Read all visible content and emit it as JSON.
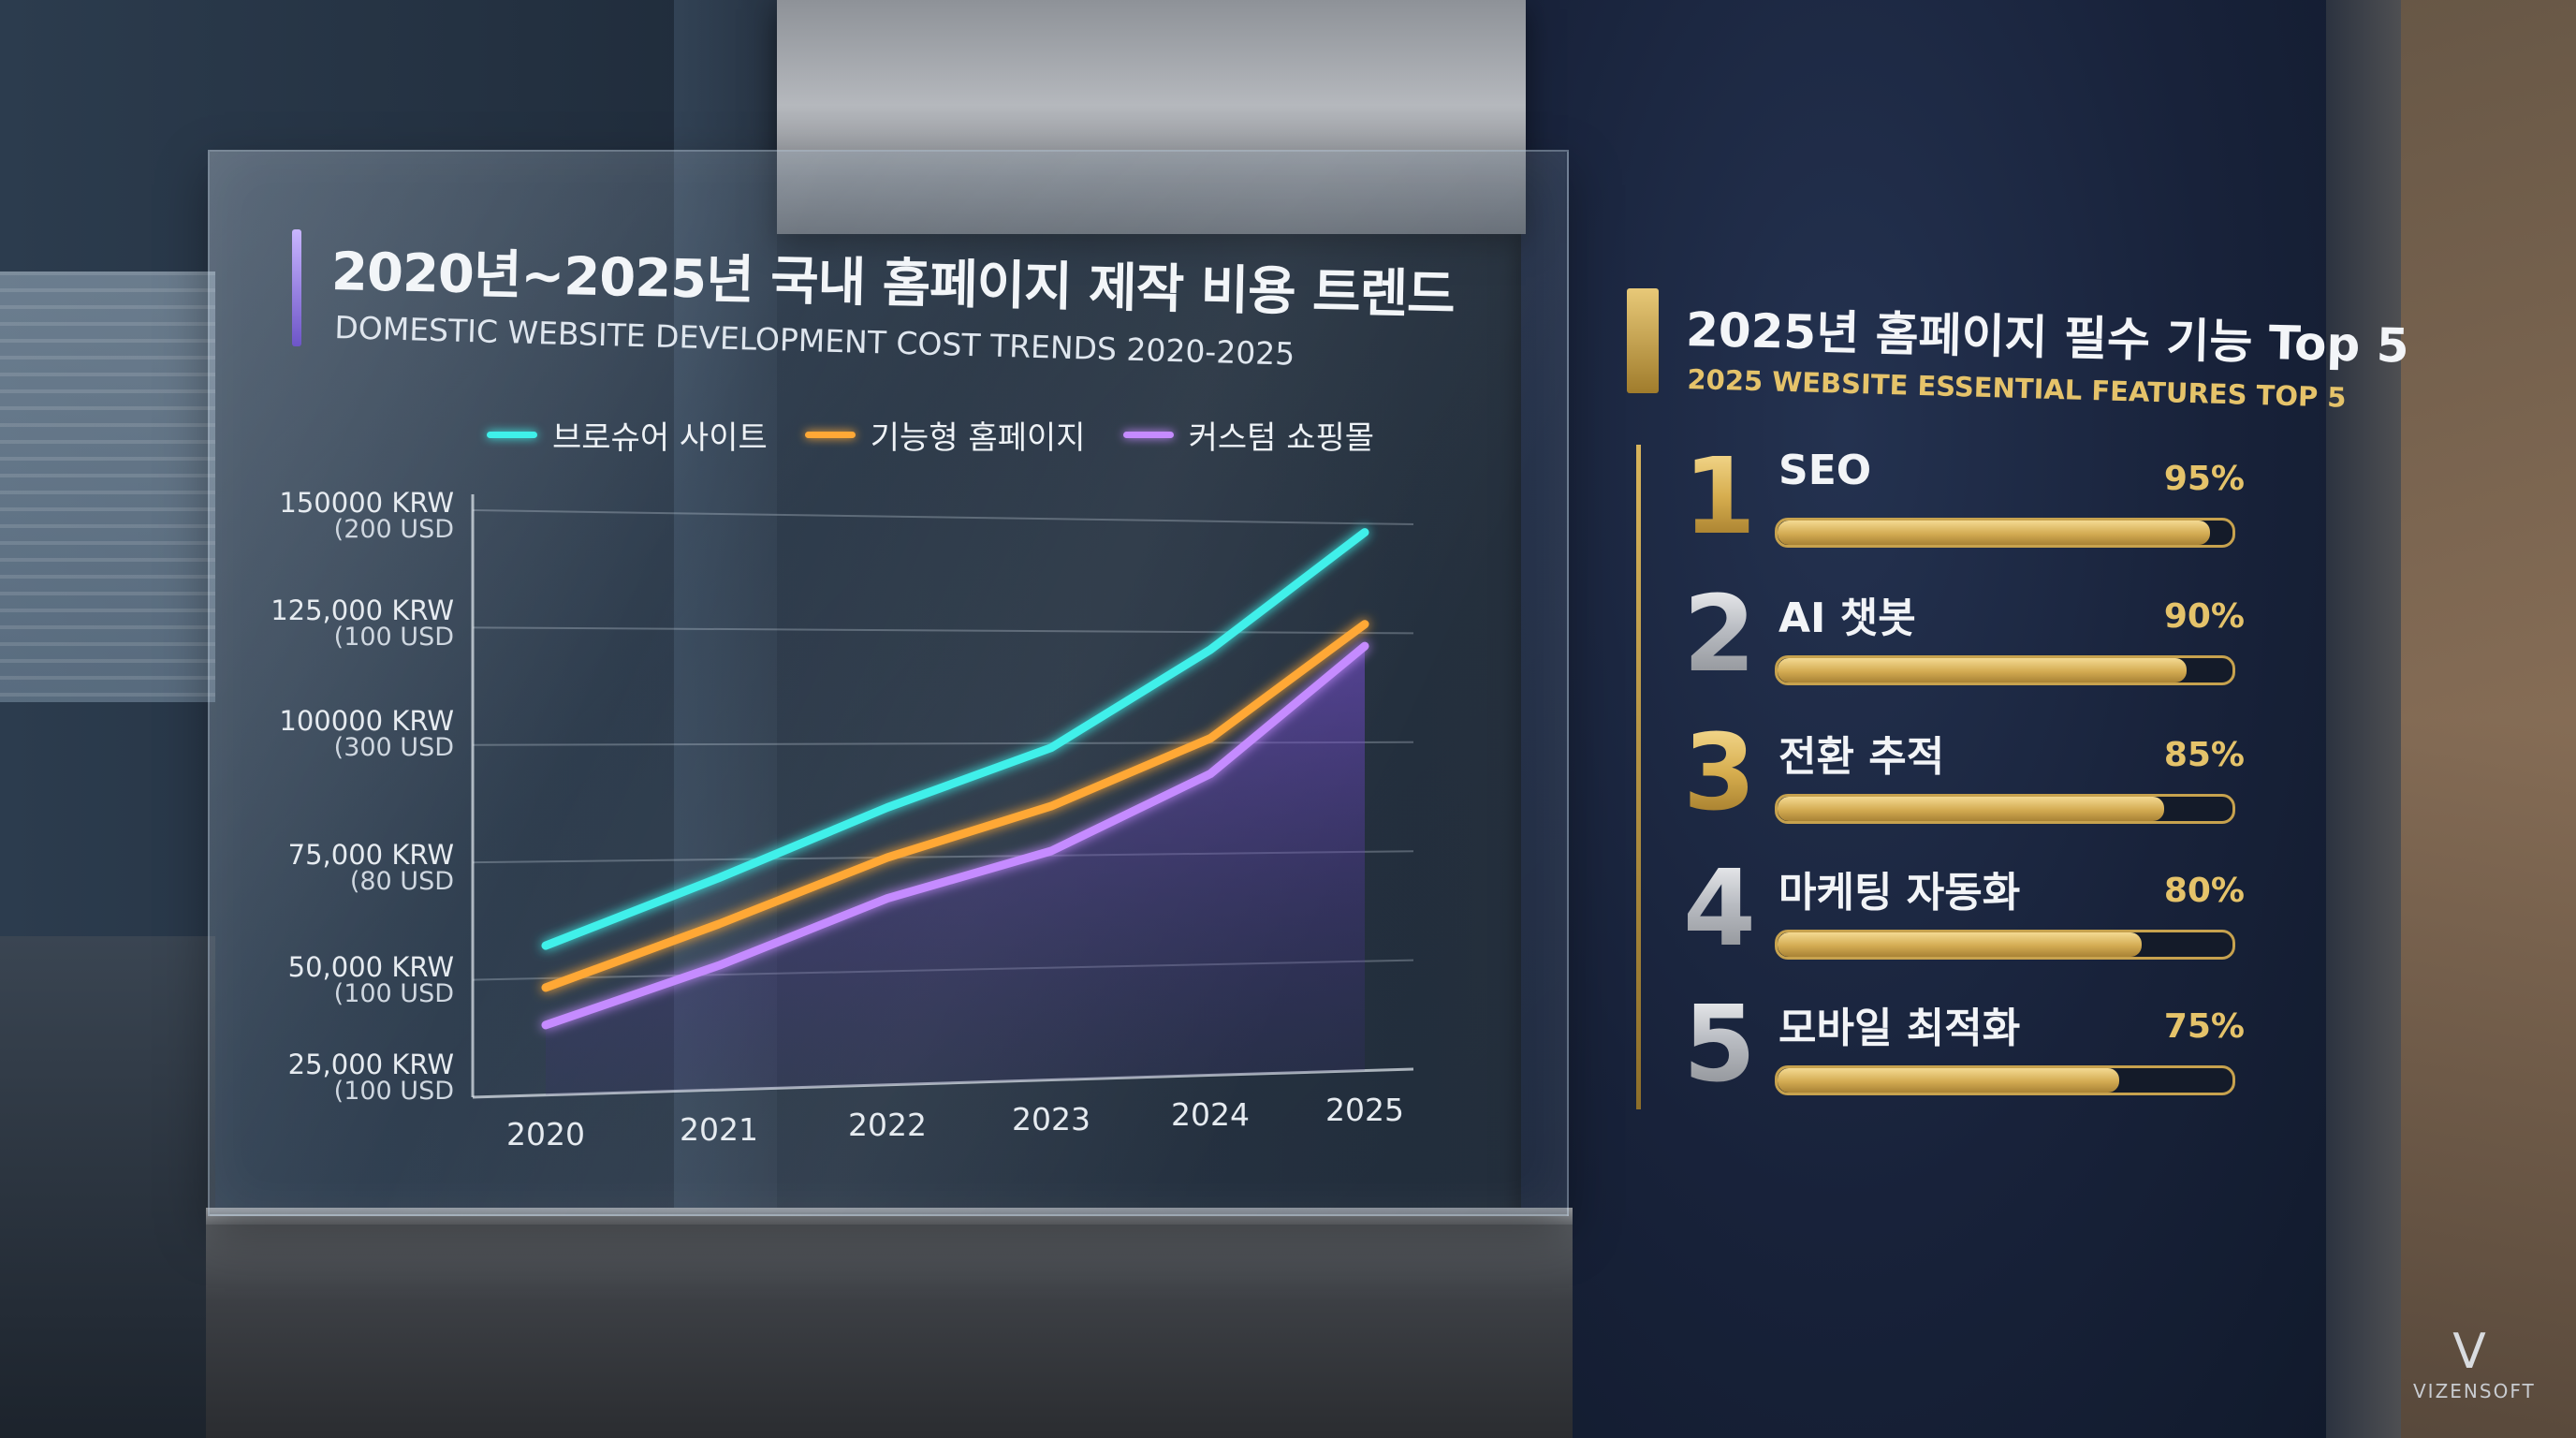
{
  "chart": {
    "title": "2020년~2025년 국내 홈페이지 제작 비용 트렌드",
    "subtitle": "DOMESTIC WEBSITE DEVELOPMENT COST TRENDS 2020-2025",
    "legend": [
      "브로슈어 사이트",
      "기능형 홈페이지",
      "커스텀 쇼핑몰"
    ],
    "y_ticks": [
      {
        "krw": "150000 KRW",
        "usd": "(200 USD"
      },
      {
        "krw": "125,000 KRW",
        "usd": "(100 USD"
      },
      {
        "krw": "100000 KRW",
        "usd": "(300 USD"
      },
      {
        "krw": "75,000 KRW",
        "usd": "(80 USD"
      },
      {
        "krw": "50,000 KRW",
        "usd": "(100 USD"
      },
      {
        "krw": "25,000 KRW",
        "usd": "(100 USD"
      }
    ],
    "x_ticks": [
      "2020",
      "2021",
      "2022",
      "2023",
      "2024",
      "2025"
    ]
  },
  "chart_data": {
    "type": "line",
    "title": "2020년~2025년 국내 홈페이지 제작 비용 트렌드",
    "subtitle": "DOMESTIC WEBSITE DEVELOPMENT COST TRENDS 2020-2025",
    "x": [
      "2020",
      "2021",
      "2022",
      "2023",
      "2024",
      "2025"
    ],
    "ylim": [
      25000,
      150000
    ],
    "y_unit": "KRW",
    "grid": true,
    "legend_position": "top",
    "series": [
      {
        "name": "브로슈어 사이트",
        "color": "#3ff0ea",
        "values": [
          57000,
          71000,
          86000,
          99000,
          121000,
          148000
        ]
      },
      {
        "name": "기능형 홈페이지",
        "color": "#ffa836",
        "values": [
          48000,
          61000,
          75000,
          86000,
          101000,
          127000
        ]
      },
      {
        "name": "커스텀 쇼핑몰",
        "color": "#c58bff",
        "area_fill": true,
        "values": [
          40000,
          52000,
          66000,
          76000,
          93000,
          122000
        ]
      }
    ]
  },
  "features": {
    "title": "2025년 홈페이지 필수 기능 Top 5",
    "subtitle": "2025 WEBSITE ESSENTIAL FEATURES TOP 5",
    "items": [
      {
        "rank": "1",
        "label": "SEO",
        "percent_label": "95%",
        "percent": 95,
        "color": "gold"
      },
      {
        "rank": "2",
        "label": "AI 챗봇",
        "percent_label": "90%",
        "percent": 90,
        "color": "silver"
      },
      {
        "rank": "3",
        "label": "전환 추적",
        "percent_label": "85%",
        "percent": 85,
        "color": "gold"
      },
      {
        "rank": "4",
        "label": "마케팅 자동화",
        "percent_label": "80%",
        "percent": 80,
        "color": "silver"
      },
      {
        "rank": "5",
        "label": "모바일 최적화",
        "percent_label": "75%",
        "percent": 75,
        "color": "silver"
      }
    ]
  },
  "brand": {
    "mark": "V",
    "name": "VIZENSOFT"
  }
}
